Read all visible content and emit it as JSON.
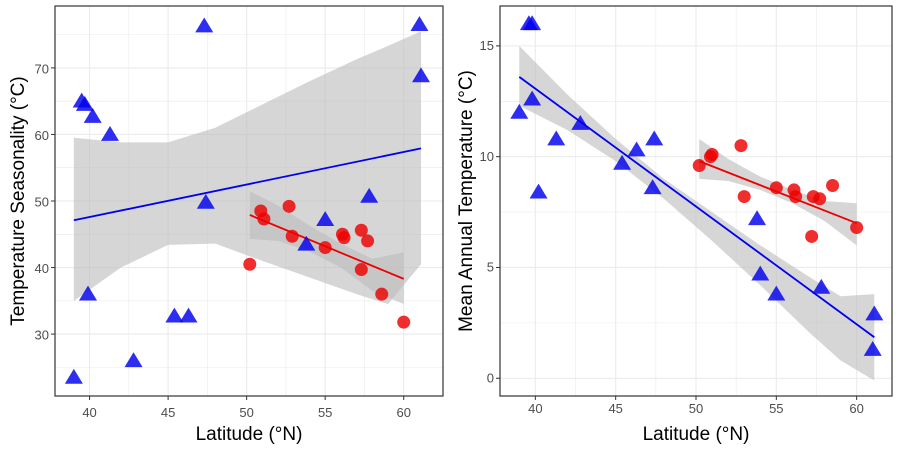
{
  "colors": {
    "group_a": "#0000ee",
    "group_b": "#ee0000",
    "band": "#bdbdbd",
    "grid": "#ebebeb",
    "frame": "#333333"
  },
  "chart_data": [
    {
      "type": "scatter",
      "xlabel": "Latitude (°N)",
      "ylabel": "Temperature Seasonality (°C)",
      "xlim": [
        37.8,
        62.5
      ],
      "ylim": [
        20.7,
        79.3
      ],
      "x_ticks": [
        40,
        45,
        50,
        55,
        60
      ],
      "y_ticks": [
        30,
        40,
        50,
        60,
        70
      ],
      "grid": true,
      "series": [
        {
          "marker": "triangle",
          "color": "#0000ee",
          "points": [
            [
              39.0,
              23.5
            ],
            [
              39.5,
              65.0
            ],
            [
              39.7,
              64.5
            ],
            [
              39.9,
              36.0
            ],
            [
              40.2,
              62.7
            ],
            [
              41.3,
              60.0
            ],
            [
              42.8,
              26.0
            ],
            [
              45.4,
              32.7
            ],
            [
              46.3,
              32.7
            ],
            [
              47.3,
              76.3
            ],
            [
              47.4,
              49.8
            ],
            [
              53.8,
              43.5
            ],
            [
              55.0,
              47.2
            ],
            [
              57.8,
              50.7
            ],
            [
              61.0,
              76.5
            ],
            [
              61.1,
              68.8
            ]
          ],
          "trend": [
            [
              39.0,
              47.1
            ],
            [
              61.1,
              57.9
            ]
          ],
          "band": [
            [
              39.0,
              35.0,
              59.5
            ],
            [
              42.0,
              40.0,
              58.8
            ],
            [
              45.0,
              43.4,
              58.8
            ],
            [
              48.0,
              43.6,
              61.0
            ],
            [
              51.0,
              41.0,
              64.5
            ],
            [
              54.0,
              38.5,
              68.0
            ],
            [
              57.0,
              36.0,
              71.3
            ],
            [
              59.0,
              34.5,
              73.3
            ],
            [
              61.1,
              40.5,
              75.5
            ]
          ]
        },
        {
          "marker": "circle",
          "color": "#ee0000",
          "points": [
            [
              50.2,
              40.5
            ],
            [
              50.9,
              48.5
            ],
            [
              51.1,
              47.3
            ],
            [
              52.7,
              49.2
            ],
            [
              52.9,
              44.7
            ],
            [
              55.0,
              43.0
            ],
            [
              56.1,
              45.0
            ],
            [
              56.2,
              44.5
            ],
            [
              57.3,
              45.6
            ],
            [
              57.7,
              44.0
            ],
            [
              57.3,
              39.7
            ],
            [
              58.6,
              36.0
            ],
            [
              60.0,
              31.8
            ]
          ],
          "trend": [
            [
              50.2,
              47.9
            ],
            [
              60.0,
              38.3
            ]
          ],
          "band": [
            [
              50.2,
              44.3,
              51.5
            ],
            [
              52.0,
              44.0,
              49.3
            ],
            [
              54.0,
              42.4,
              46.3
            ],
            [
              56.0,
              40.0,
              43.6
            ],
            [
              58.0,
              36.5,
              41.3
            ],
            [
              60.0,
              34.5,
              42.3
            ]
          ]
        }
      ]
    },
    {
      "type": "scatter",
      "xlabel": "Latitude (°N)",
      "ylabel": "Mean Annual Temperature (°C)",
      "xlim": [
        37.8,
        62.2
      ],
      "ylim": [
        -0.8,
        16.8
      ],
      "x_ticks": [
        40,
        45,
        50,
        55,
        60
      ],
      "y_ticks": [
        0,
        5,
        10,
        15
      ],
      "grid": true,
      "series": [
        {
          "marker": "triangle",
          "color": "#0000ee",
          "points": [
            [
              39.0,
              12.0
            ],
            [
              39.6,
              16.0
            ],
            [
              39.8,
              16.0
            ],
            [
              39.8,
              12.6
            ],
            [
              40.2,
              8.4
            ],
            [
              41.3,
              10.8
            ],
            [
              42.8,
              11.5
            ],
            [
              45.4,
              9.7
            ],
            [
              46.3,
              10.3
            ],
            [
              47.3,
              8.6
            ],
            [
              47.4,
              10.8
            ],
            [
              53.8,
              7.2
            ],
            [
              54.0,
              4.7
            ],
            [
              55.0,
              3.8
            ],
            [
              57.8,
              4.1
            ],
            [
              61.0,
              1.3
            ],
            [
              61.1,
              2.9
            ]
          ],
          "trend": [
            [
              39.0,
              13.6
            ],
            [
              61.1,
              1.85
            ]
          ],
          "band": [
            [
              39.0,
              12.3,
              15.0
            ],
            [
              42.0,
              11.2,
              12.8
            ],
            [
              45.0,
              9.8,
              10.8
            ],
            [
              48.0,
              8.1,
              9.0
            ],
            [
              51.0,
              6.2,
              7.5
            ],
            [
              54.0,
              4.2,
              6.0
            ],
            [
              57.0,
              2.1,
              4.6
            ],
            [
              59.0,
              0.8,
              3.7
            ],
            [
              61.1,
              -0.1,
              3.8
            ]
          ]
        },
        {
          "marker": "circle",
          "color": "#ee0000",
          "points": [
            [
              50.2,
              9.6
            ],
            [
              50.9,
              10.0
            ],
            [
              51.0,
              10.1
            ],
            [
              52.8,
              10.5
            ],
            [
              53.0,
              8.2
            ],
            [
              55.0,
              8.6
            ],
            [
              56.1,
              8.5
            ],
            [
              56.2,
              8.2
            ],
            [
              57.2,
              6.4
            ],
            [
              57.3,
              8.2
            ],
            [
              57.7,
              8.1
            ],
            [
              58.5,
              8.7
            ],
            [
              60.0,
              6.8
            ]
          ],
          "trend": [
            [
              50.2,
              9.8
            ],
            [
              60.0,
              7.0
            ]
          ],
          "band": [
            [
              50.2,
              9.0,
              10.8
            ],
            [
              52.0,
              8.9,
              9.9
            ],
            [
              54.0,
              8.5,
              9.1
            ],
            [
              56.0,
              7.9,
              8.5
            ],
            [
              58.0,
              7.1,
              8.0
            ],
            [
              60.0,
              6.0,
              7.9
            ]
          ]
        }
      ]
    }
  ]
}
